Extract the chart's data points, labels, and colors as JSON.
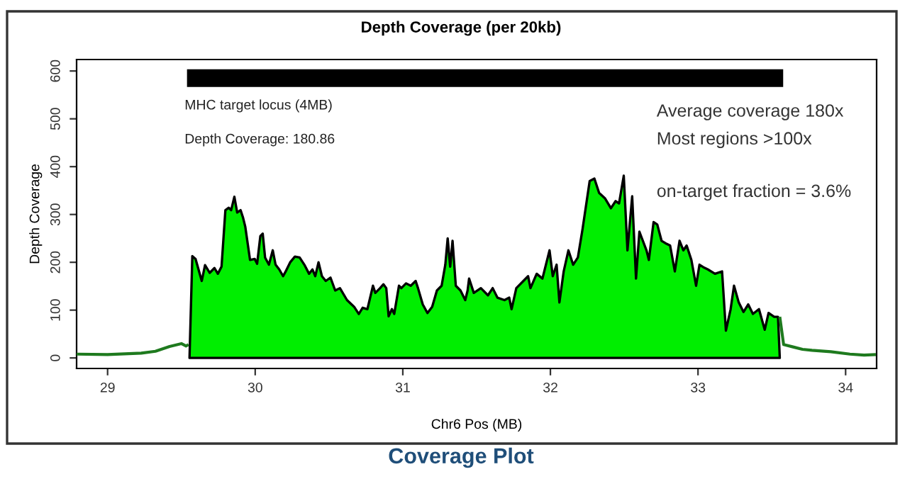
{
  "chart_data": {
    "type": "area",
    "title": "Depth Coverage (per 20kb)",
    "xlabel": "Chr6 Pos (MB)",
    "ylabel": "Depth Coverage",
    "xlim": [
      28.79,
      34.21
    ],
    "xticks": [
      29,
      30,
      31,
      32,
      33,
      34
    ],
    "ylim": [
      -22,
      624
    ],
    "yticks": [
      0,
      100,
      200,
      300,
      400,
      500,
      600
    ],
    "grid": false,
    "series": [
      {
        "color": "#00ee00",
        "x": [
          29.555,
          29.574,
          29.596,
          29.638,
          29.66,
          29.692,
          29.724,
          29.747,
          29.772,
          29.798,
          29.821,
          29.837,
          29.859,
          29.878,
          29.901,
          29.917,
          29.933,
          29.965,
          29.997,
          30.013,
          30.035,
          30.051,
          30.067,
          30.093,
          30.119,
          30.138,
          30.163,
          30.189,
          30.205,
          30.237,
          30.269,
          30.301,
          30.333,
          30.365,
          30.388,
          30.407,
          30.429,
          30.452,
          30.478,
          30.51,
          30.542,
          30.574,
          30.622,
          30.67,
          30.702,
          30.728,
          30.76,
          30.798,
          30.814,
          30.846,
          30.869,
          30.888,
          30.904,
          30.926,
          30.942,
          30.974,
          30.99,
          31.022,
          31.054,
          31.087,
          31.103,
          31.135,
          31.167,
          31.199,
          31.231,
          31.263,
          31.288,
          31.304,
          31.321,
          31.337,
          31.359,
          31.391,
          31.423,
          31.439,
          31.449,
          31.481,
          31.529,
          31.577,
          31.609,
          31.641,
          31.689,
          31.721,
          31.737,
          31.769,
          31.817,
          31.849,
          31.865,
          31.907,
          31.946,
          31.994,
          32.016,
          32.042,
          32.061,
          32.09,
          32.122,
          32.154,
          32.186,
          32.218,
          32.266,
          32.298,
          32.33,
          32.369,
          32.41,
          32.442,
          32.465,
          32.497,
          32.522,
          32.554,
          32.58,
          32.603,
          32.651,
          32.667,
          32.699,
          32.724,
          32.753,
          32.779,
          32.811,
          32.843,
          32.875,
          32.901,
          32.923,
          32.955,
          32.987,
          33.01,
          33.035,
          33.067,
          33.115,
          33.163,
          33.189,
          33.221,
          33.244,
          33.276,
          33.308,
          33.34,
          33.372,
          33.413,
          33.452,
          33.478,
          33.516,
          33.542,
          33.554
        ],
        "values": [
          0,
          213,
          207,
          161,
          194,
          178,
          188,
          176,
          191,
          309,
          314,
          309,
          337,
          304,
          309,
          294,
          274,
          205,
          207,
          197,
          255,
          260,
          210,
          195,
          225,
          195,
          185,
          171,
          180,
          200,
          212,
          210,
          195,
          176,
          185,
          171,
          200,
          171,
          161,
          168,
          141,
          146,
          121,
          107,
          92,
          105,
          102,
          151,
          136,
          146,
          154,
          146,
          87,
          102,
          92,
          151,
          146,
          156,
          151,
          161,
          146,
          112,
          94,
          107,
          141,
          151,
          195,
          250,
          191,
          245,
          151,
          141,
          121,
          141,
          166,
          136,
          146,
          131,
          146,
          126,
          121,
          126,
          102,
          146,
          161,
          171,
          146,
          176,
          166,
          225,
          171,
          195,
          116,
          181,
          225,
          195,
          210,
          270,
          370,
          375,
          345,
          334,
          313,
          328,
          323,
          381,
          225,
          338,
          166,
          264,
          225,
          205,
          284,
          279,
          245,
          240,
          235,
          181,
          245,
          225,
          235,
          205,
          151,
          195,
          190,
          185,
          176,
          181,
          57,
          102,
          151,
          116,
          96,
          112,
          92,
          102,
          59,
          94,
          86,
          86,
          0
        ]
      },
      {
        "type": "line",
        "color": "#1e7a1e",
        "x": [
          28.79,
          29.0,
          29.228,
          29.324,
          29.42,
          29.5,
          29.532,
          29.548,
          null,
          33.554,
          33.58,
          33.644,
          33.708,
          33.772,
          33.9,
          34.029,
          34.125,
          34.205
        ],
        "values": [
          8,
          7,
          10,
          14,
          24,
          30,
          25,
          28,
          null,
          86,
          28,
          23,
          18,
          16,
          13,
          8,
          6,
          7
        ]
      },
      {
        "type": "line",
        "color": "#000000",
        "x": [
          29.538,
          33.577
        ],
        "values": [
          585,
          585
        ]
      }
    ],
    "annotations": [
      "MHC target locus (4MB)",
      "Depth Coverage: 180.86",
      "Average coverage 180x",
      "Most regions >100x",
      "on-target fraction = 3.6%",
      "Coverage Plot"
    ]
  }
}
